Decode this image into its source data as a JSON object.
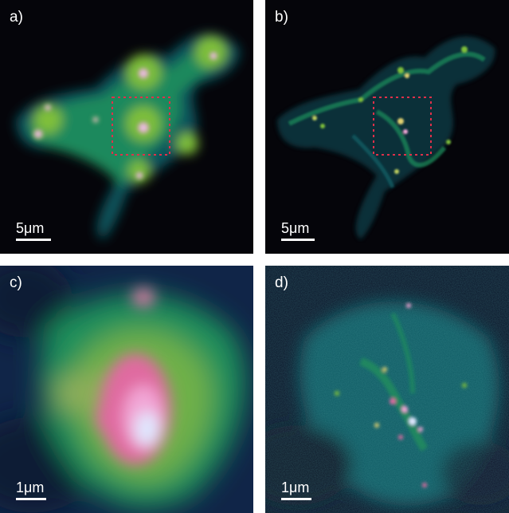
{
  "panels": [
    {
      "label": "a)",
      "scale_label": "5μm",
      "roi_box": true,
      "style": "diffraction-limited wide field"
    },
    {
      "label": "b)",
      "scale_label": "5μm",
      "roi_box": true,
      "style": "super-resolved wide field"
    },
    {
      "label": "c)",
      "scale_label": "1μm",
      "roi_box": false,
      "style": "diffraction-limited zoom"
    },
    {
      "label": "d)",
      "scale_label": "1μm",
      "roi_box": false,
      "style": "super-resolved zoom"
    }
  ],
  "colors": {
    "background": "#05050a",
    "colormap": [
      "#05050a",
      "#0f2b4a",
      "#12626a",
      "#1f8f5c",
      "#7fbf3a",
      "#e06aa0",
      "#f2a6d6",
      "#dfe8ff"
    ],
    "roi_box": "#e0304a",
    "text": "#ffffff"
  }
}
